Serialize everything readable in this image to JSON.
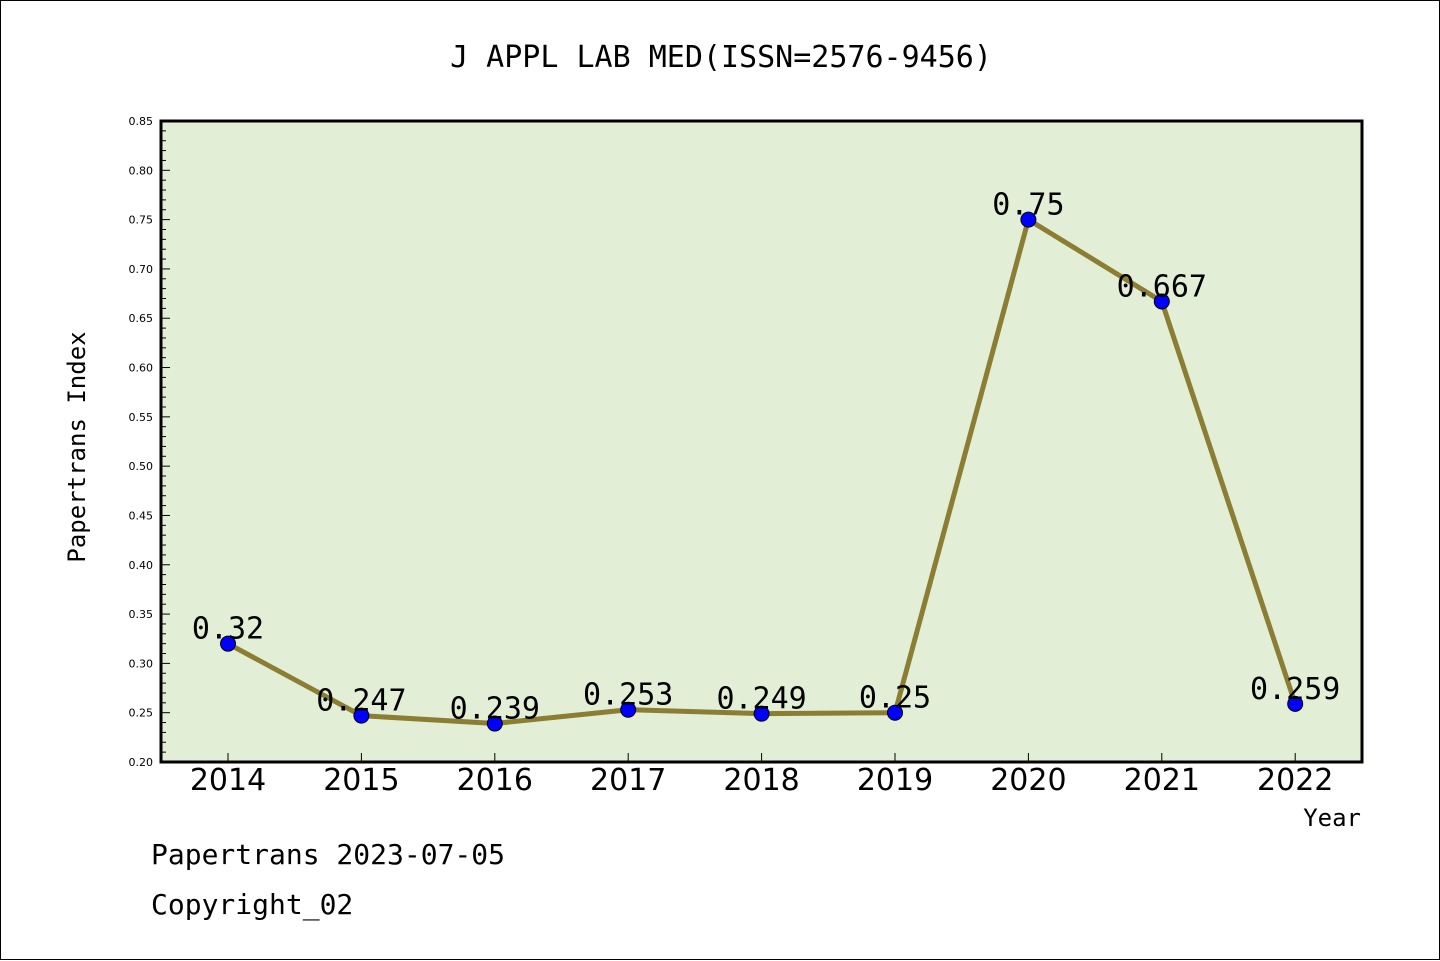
{
  "chart_data": {
    "type": "line",
    "title": "J APPL LAB MED(ISSN=2576-9456)",
    "xlabel": "Year",
    "ylabel": "Papertrans Index",
    "categories": [
      "2014",
      "2015",
      "2016",
      "2017",
      "2018",
      "2019",
      "2020",
      "2021",
      "2022"
    ],
    "values": [
      0.32,
      0.247,
      0.239,
      0.253,
      0.249,
      0.25,
      0.75,
      0.667,
      0.259
    ],
    "data_labels": [
      "0.32",
      "0.247",
      "0.239",
      "0.253",
      "0.249",
      "0.25",
      "0.75",
      "0.667",
      "0.259"
    ],
    "ylim": [
      0.2,
      0.85
    ],
    "yticks": [
      "0.20",
      "0.25",
      "0.30",
      "0.35",
      "0.40",
      "0.45",
      "0.50",
      "0.55",
      "0.60",
      "0.65",
      "0.70",
      "0.75",
      "0.80",
      "0.85"
    ],
    "grid": false,
    "legend": "none",
    "colors": {
      "plot_background": "#e2efd6",
      "line": "#8b7d32",
      "marker": "#0000ff"
    }
  },
  "footer": {
    "source": "Papertrans 2023-07-05",
    "copyright": "Copyright_02"
  }
}
